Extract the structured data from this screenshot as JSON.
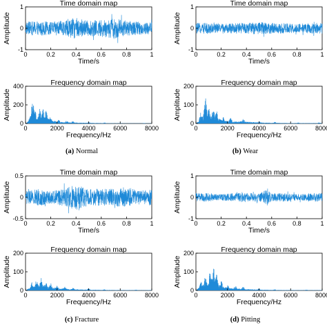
{
  "plot_color": "#1f8ad8",
  "panels": [
    {
      "id": "a",
      "caption_letter": "(a)",
      "caption_name": "Normal"
    },
    {
      "id": "b",
      "caption_letter": "(b)",
      "caption_name": "Wear"
    },
    {
      "id": "c",
      "caption_letter": "(c)",
      "caption_name": "Fracture"
    },
    {
      "id": "d",
      "caption_letter": "(d)",
      "caption_name": "Pitting"
    }
  ],
  "chart_data": [
    {
      "panel": "a",
      "kind": "time",
      "type": "line",
      "title": "Time domain map",
      "xlabel": "Time/s",
      "ylabel": "Amplitude",
      "xlim": [
        0,
        1
      ],
      "ylim": [
        -1,
        1
      ],
      "xticks": [
        "0",
        "0.2",
        "0.4",
        "0.6",
        "0.8",
        "1"
      ],
      "yticks": [
        "1",
        "0",
        "-1"
      ],
      "amplitude_envelope": [
        [
          0,
          0.3
        ],
        [
          0.1,
          0.35
        ],
        [
          0.2,
          0.3
        ],
        [
          0.3,
          0.35
        ],
        [
          0.4,
          0.5
        ],
        [
          0.5,
          0.35
        ],
        [
          0.6,
          0.4
        ],
        [
          0.7,
          0.5
        ],
        [
          0.8,
          0.35
        ],
        [
          0.9,
          0.3
        ],
        [
          1,
          0.3
        ]
      ]
    },
    {
      "panel": "a",
      "kind": "freq",
      "type": "line",
      "title": "Frequency domain map",
      "xlabel": "Frequency/Hz",
      "ylabel": "Amplitude",
      "xlim": [
        0,
        8000
      ],
      "ylim": [
        0,
        400
      ],
      "xticks": [
        "0",
        "2000",
        "4000",
        "6000",
        "8000"
      ],
      "yticks": [
        "400",
        "200",
        "0"
      ],
      "peaks": [
        [
          300,
          100
        ],
        [
          450,
          250
        ],
        [
          600,
          150
        ],
        [
          900,
          160
        ],
        [
          1100,
          160
        ],
        [
          1300,
          150
        ],
        [
          1600,
          80
        ],
        [
          2100,
          40
        ],
        [
          2600,
          30
        ],
        [
          3000,
          25
        ],
        [
          4000,
          15
        ],
        [
          5000,
          10
        ],
        [
          6000,
          5
        ],
        [
          7500,
          5
        ]
      ]
    },
    {
      "panel": "b",
      "kind": "time",
      "type": "line",
      "title": "Time domain map",
      "xlabel": "Time/s",
      "ylabel": "Amplitude",
      "xlim": [
        0,
        1
      ],
      "ylim": [
        -1,
        1
      ],
      "xticks": [
        "0",
        "0.2",
        "0.4",
        "0.6",
        "0.8",
        "1"
      ],
      "yticks": [
        "1",
        "0",
        "-1"
      ],
      "amplitude_envelope": [
        [
          0,
          0.25
        ],
        [
          0.1,
          0.25
        ],
        [
          0.2,
          0.2
        ],
        [
          0.3,
          0.25
        ],
        [
          0.4,
          0.25
        ],
        [
          0.5,
          0.3
        ],
        [
          0.6,
          0.25
        ],
        [
          0.7,
          0.25
        ],
        [
          0.8,
          0.2
        ],
        [
          0.9,
          0.25
        ],
        [
          1,
          0.25
        ]
      ]
    },
    {
      "panel": "b",
      "kind": "freq",
      "type": "line",
      "title": "Frequency domain map",
      "xlabel": "Frequency/Hz",
      "ylabel": "Amplitude",
      "xlim": [
        0,
        8000
      ],
      "ylim": [
        0,
        200
      ],
      "xticks": [
        "0",
        "2000",
        "4000",
        "6000",
        "8000"
      ],
      "yticks": [
        "200",
        "100",
        "0"
      ],
      "peaks": [
        [
          300,
          60
        ],
        [
          600,
          140
        ],
        [
          800,
          90
        ],
        [
          1100,
          80
        ],
        [
          1300,
          70
        ],
        [
          1700,
          40
        ],
        [
          2200,
          30
        ],
        [
          3000,
          25
        ],
        [
          4000,
          12
        ],
        [
          5000,
          8
        ],
        [
          6500,
          5
        ],
        [
          7800,
          5
        ]
      ]
    },
    {
      "panel": "c",
      "kind": "time",
      "type": "line",
      "title": "Time domain map",
      "xlabel": "Time/s",
      "ylabel": "Amplitude",
      "xlim": [
        0,
        1
      ],
      "ylim": [
        -0.5,
        0.5
      ],
      "xticks": [
        "0",
        "0.2",
        "0.4",
        "0.6",
        "0.8",
        "1"
      ],
      "yticks": [
        "0.5",
        "0",
        "-0.5"
      ],
      "amplitude_envelope": [
        [
          0,
          0.15
        ],
        [
          0.1,
          0.2
        ],
        [
          0.2,
          0.15
        ],
        [
          0.3,
          0.2
        ],
        [
          0.4,
          0.3
        ],
        [
          0.5,
          0.2
        ],
        [
          0.6,
          0.2
        ],
        [
          0.7,
          0.2
        ],
        [
          0.8,
          0.25
        ],
        [
          0.9,
          0.15
        ],
        [
          1,
          0.2
        ]
      ]
    },
    {
      "panel": "c",
      "kind": "freq",
      "type": "line",
      "title": "Frequency domain map",
      "xlabel": "Frequency/Hz",
      "ylabel": "Amplitude",
      "xlim": [
        0,
        8000
      ],
      "ylim": [
        0,
        200
      ],
      "xticks": [
        "0",
        "2000",
        "4000",
        "6000",
        "8000"
      ],
      "yticks": [
        "200",
        "100",
        "0"
      ],
      "peaks": [
        [
          400,
          50
        ],
        [
          700,
          60
        ],
        [
          1000,
          70
        ],
        [
          1300,
          55
        ],
        [
          1600,
          40
        ],
        [
          2000,
          30
        ],
        [
          2500,
          20
        ],
        [
          3000,
          15
        ],
        [
          4000,
          10
        ],
        [
          5000,
          6
        ],
        [
          7000,
          4
        ]
      ]
    },
    {
      "panel": "d",
      "kind": "time",
      "type": "line",
      "title": "Time domain map",
      "xlabel": "Time/s",
      "ylabel": "Amplitude",
      "xlim": [
        0,
        1
      ],
      "ylim": [
        -1,
        1
      ],
      "xticks": [
        "0",
        "0.2",
        "0.4",
        "0.6",
        "0.8",
        "1"
      ],
      "yticks": [
        "1",
        "0",
        "-1"
      ],
      "amplitude_envelope": [
        [
          0,
          0.2
        ],
        [
          0.1,
          0.2
        ],
        [
          0.2,
          0.15
        ],
        [
          0.3,
          0.2
        ],
        [
          0.4,
          0.2
        ],
        [
          0.5,
          0.2
        ],
        [
          0.56,
          0.35
        ],
        [
          0.6,
          0.2
        ],
        [
          0.7,
          0.2
        ],
        [
          0.8,
          0.15
        ],
        [
          0.9,
          0.2
        ],
        [
          1,
          0.2
        ]
      ]
    },
    {
      "panel": "d",
      "kind": "freq",
      "type": "line",
      "title": "Frequency domain map",
      "xlabel": "Frequency/Hz",
      "ylabel": "Amplitude",
      "xlim": [
        0,
        8000
      ],
      "ylim": [
        0,
        200
      ],
      "xticks": [
        "0",
        "2000",
        "4000",
        "6000",
        "8000"
      ],
      "yticks": [
        "200",
        "100",
        "0"
      ],
      "peaks": [
        [
          300,
          60
        ],
        [
          600,
          80
        ],
        [
          900,
          100
        ],
        [
          1100,
          130
        ],
        [
          1300,
          90
        ],
        [
          1600,
          55
        ],
        [
          2000,
          30
        ],
        [
          2500,
          25
        ],
        [
          3000,
          20
        ],
        [
          4000,
          10
        ],
        [
          5000,
          6
        ],
        [
          7000,
          4
        ]
      ]
    }
  ]
}
